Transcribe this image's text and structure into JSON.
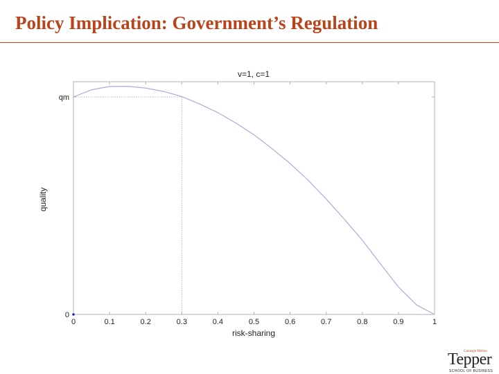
{
  "slide": {
    "title": "Policy Implication: Government’s Regulation"
  },
  "chart_data": {
    "type": "line",
    "title": "v=1, c=1",
    "xlabel": "risk-sharing",
    "ylabel": "quality",
    "xlim": [
      0,
      1
    ],
    "ylim": [
      0,
      1.07
    ],
    "xticks": [
      "0",
      "0.1",
      "0.2",
      "0.3",
      "0.4",
      "0.5",
      "0.6",
      "0.7",
      "0.8",
      "0.9",
      "1"
    ],
    "xtick_values": [
      0,
      0.1,
      0.2,
      0.3,
      0.4,
      0.5,
      0.6,
      0.7,
      0.8,
      0.9,
      1
    ],
    "yticks": [
      "0",
      "qm"
    ],
    "ytick_values": [
      0,
      1
    ],
    "grid": false,
    "series": [
      {
        "x": [
          0,
          0.05,
          0.1,
          0.15,
          0.2,
          0.25,
          0.3,
          0.35,
          0.4,
          0.45,
          0.5,
          0.55,
          0.6,
          0.65,
          0.7,
          0.75,
          0.8,
          0.85,
          0.9,
          0.95,
          1
        ],
        "y": [
          1.0,
          1.033,
          1.048,
          1.049,
          1.041,
          1.025,
          1.002,
          0.967,
          0.928,
          0.88,
          0.826,
          0.762,
          0.694,
          0.617,
          0.531,
          0.438,
          0.341,
          0.233,
          0.126,
          0.044,
          0
        ],
        "color": "#a9acd8"
      }
    ],
    "reference": {
      "x": 0.3,
      "y": 1.0,
      "color": "#9fa3d0"
    },
    "marker": {
      "x": 0,
      "y": 0,
      "color": "#1a2bbd"
    }
  },
  "logo": {
    "top": "Carnegie Mellon",
    "main": "Tepper",
    "sub": "SCHOOL OF BUSINESS"
  }
}
